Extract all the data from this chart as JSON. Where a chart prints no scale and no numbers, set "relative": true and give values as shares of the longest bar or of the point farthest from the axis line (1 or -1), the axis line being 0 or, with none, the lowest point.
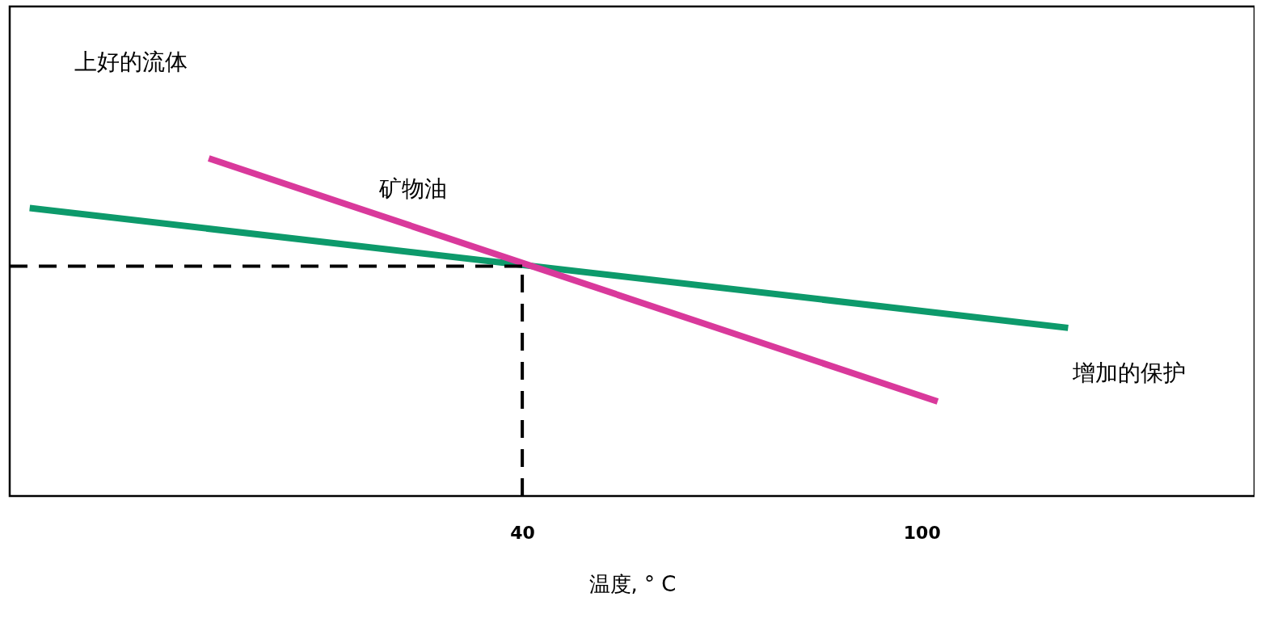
{
  "chart_data": {
    "type": "line",
    "relative": true,
    "xlabel": "温度, ° C",
    "xlim": [
      -37,
      150
    ],
    "xticks": [
      40,
      100
    ],
    "grid": false,
    "line_style": "solid",
    "marker": "none",
    "series": [
      {
        "color": "#0d9a6b",
        "x": [
          -34.0,
          122.0
        ],
        "values": [
          0.853,
          0.498
        ]
      },
      {
        "name": "矿物油",
        "color": "#d9399b",
        "x": [
          -7.1,
          102.4
        ],
        "values": [
          1.0,
          0.28
        ]
      }
    ],
    "ref_lines": [
      {
        "axis": "y",
        "value": 0.681,
        "line_style": "dashed",
        "color": "#000000"
      },
      {
        "axis": "x",
        "value": 40,
        "line_style": "dashed",
        "color": "#000000"
      }
    ],
    "annotations": [
      "上好的流体",
      "增加的保护"
    ]
  }
}
